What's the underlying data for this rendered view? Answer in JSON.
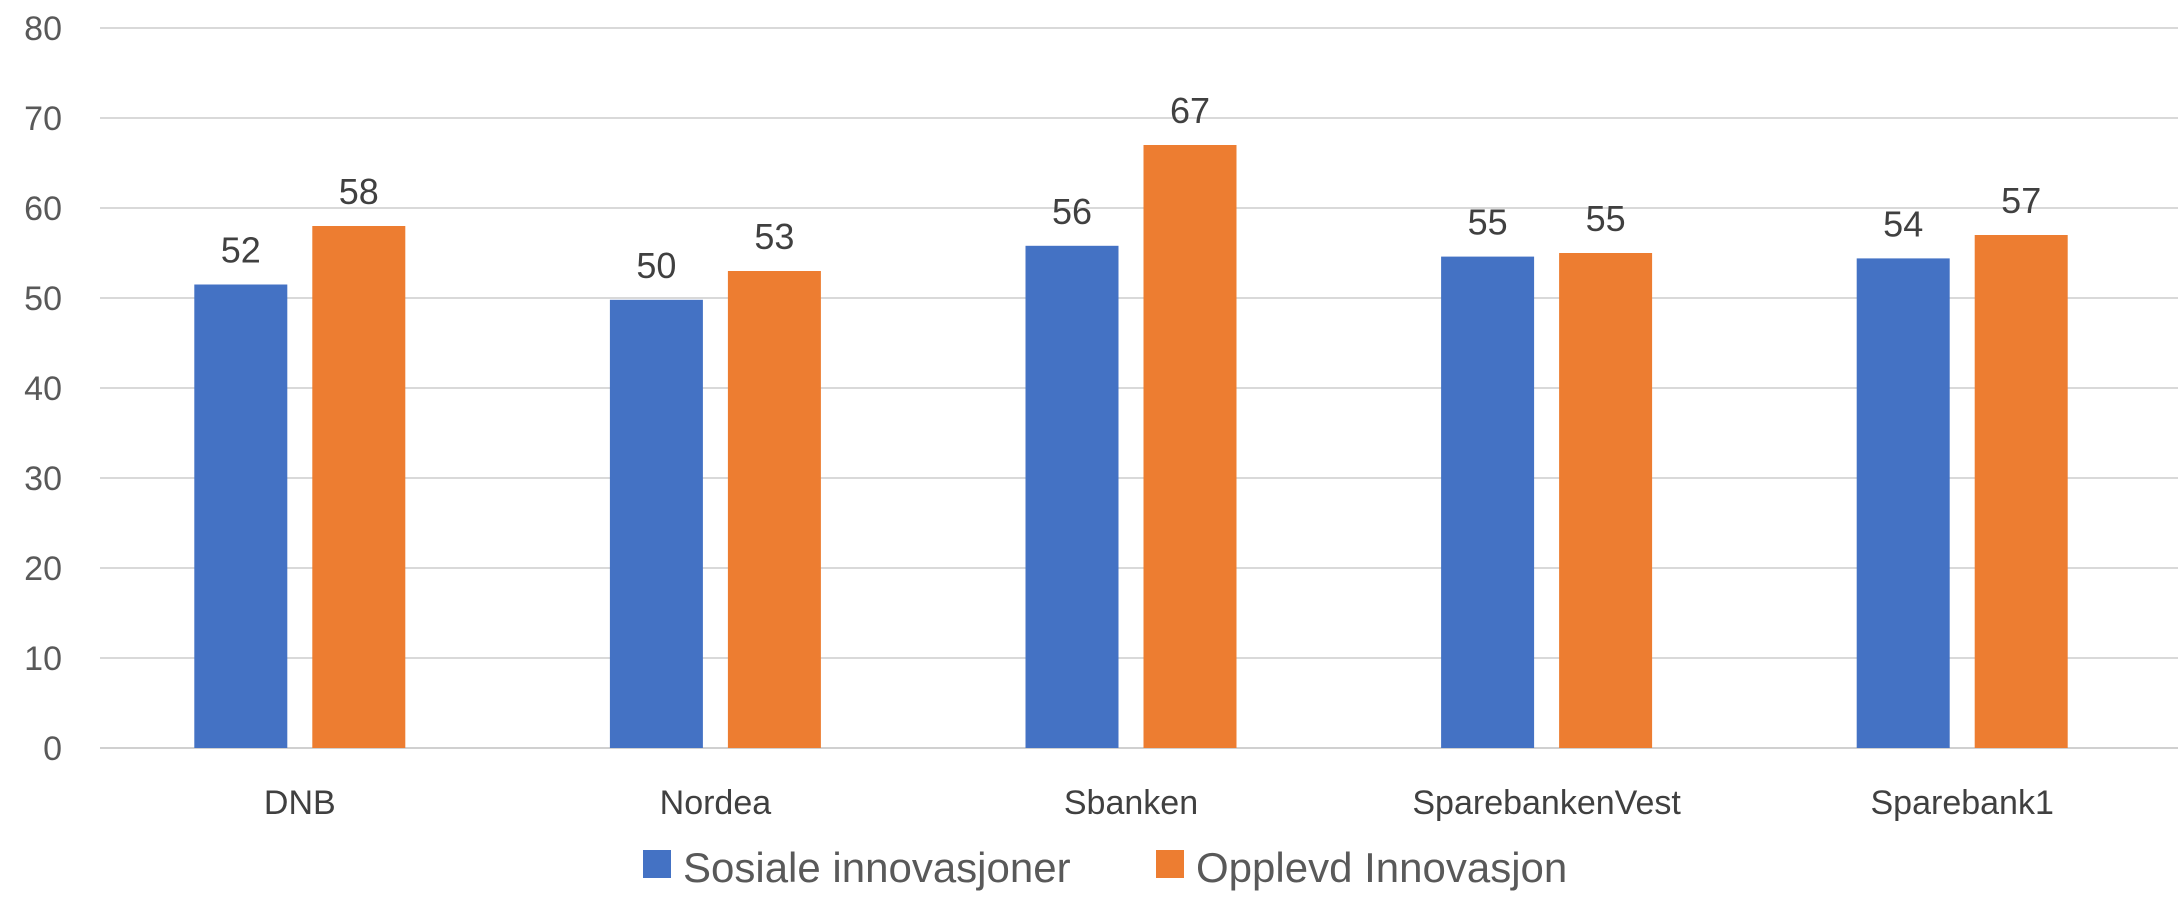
{
  "chart_data": {
    "type": "bar",
    "categories": [
      "DNB",
      "Nordea",
      "Sbanken",
      "SparebankenVest",
      "Sparebank1"
    ],
    "series": [
      {
        "name": "Sosiale innovasjoner",
        "color": "#4472C4",
        "values": [
          51.5,
          49.8,
          55.8,
          54.6,
          54.4
        ],
        "labels": [
          "52",
          "50",
          "56",
          "55",
          "54"
        ]
      },
      {
        "name": "Opplevd Innovasjon",
        "color": "#ED7D31",
        "values": [
          58,
          53,
          67,
          55,
          57
        ],
        "labels": [
          "58",
          "53",
          "67",
          "55",
          "57"
        ]
      }
    ],
    "ylim": [
      0,
      80
    ],
    "yticks": [
      "0",
      "10",
      "20",
      "30",
      "40",
      "50",
      "60",
      "70",
      "80"
    ],
    "grid": true,
    "legend": "bottom"
  }
}
